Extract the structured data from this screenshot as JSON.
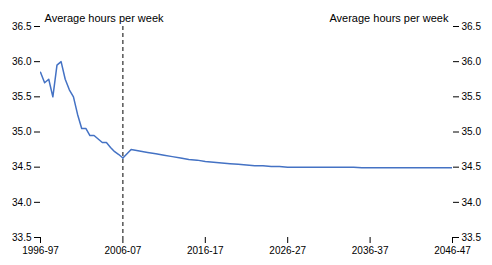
{
  "chart_data": {
    "type": "line",
    "ylabel": "Average hours per week",
    "y2label": "Average hours per week",
    "xlim": [
      0,
      50
    ],
    "xticks": [
      {
        "value": 0,
        "label": "1996-97"
      },
      {
        "value": 10,
        "label": "2006-07"
      },
      {
        "value": 20,
        "label": "2016-17"
      },
      {
        "value": 30,
        "label": "2026-27"
      },
      {
        "value": 40,
        "label": "2036-37"
      },
      {
        "value": 50,
        "label": "2046-47"
      }
    ],
    "ylim": [
      33.5,
      36.5
    ],
    "yticks": [
      33.5,
      {
        "value": 34.0,
        "label": "34.0"
      },
      34.5,
      {
        "value": 35.0,
        "label": "35.0"
      },
      35.5,
      {
        "value": 36.0,
        "label": "36.0"
      },
      36.5
    ],
    "grid": false,
    "series": [
      {
        "color": "#4472C4",
        "x": [
          0,
          0.5,
          1,
          1.5,
          2,
          2.5,
          3,
          3.5,
          4,
          4.5,
          5,
          5.5,
          6,
          6.5,
          7,
          7.5,
          8,
          8.5,
          9,
          9.5,
          10
        ],
        "values": [
          35.85,
          35.7,
          35.75,
          35.5,
          35.95,
          36.0,
          35.75,
          35.6,
          35.5,
          35.25,
          35.05,
          35.05,
          34.95,
          34.95,
          34.9,
          34.85,
          34.85,
          34.78,
          34.72,
          34.68,
          34.63
        ]
      },
      {
        "color": "#4472C4",
        "x": [
          10,
          11,
          12,
          13,
          14,
          15,
          16,
          17,
          18,
          19,
          20,
          21,
          22,
          23,
          24,
          25,
          26,
          27,
          28,
          29,
          30,
          31,
          32,
          33,
          34,
          35,
          36,
          37,
          38,
          39,
          40,
          41,
          42,
          43,
          44,
          45,
          46,
          47,
          48,
          49,
          50
        ],
        "values": [
          34.63,
          34.75,
          34.73,
          34.71,
          34.69,
          34.67,
          34.65,
          34.63,
          34.61,
          34.6,
          34.58,
          34.57,
          34.56,
          34.55,
          34.54,
          34.53,
          34.52,
          34.52,
          34.51,
          34.51,
          34.5,
          34.5,
          34.5,
          34.5,
          34.5,
          34.5,
          34.5,
          34.5,
          34.5,
          34.49,
          34.49,
          34.49,
          34.49,
          34.49,
          34.49,
          34.49,
          34.49,
          34.49,
          34.49,
          34.49,
          34.49
        ]
      }
    ],
    "vline": {
      "x": 10,
      "color": "black",
      "line_style": "dashed"
    }
  }
}
